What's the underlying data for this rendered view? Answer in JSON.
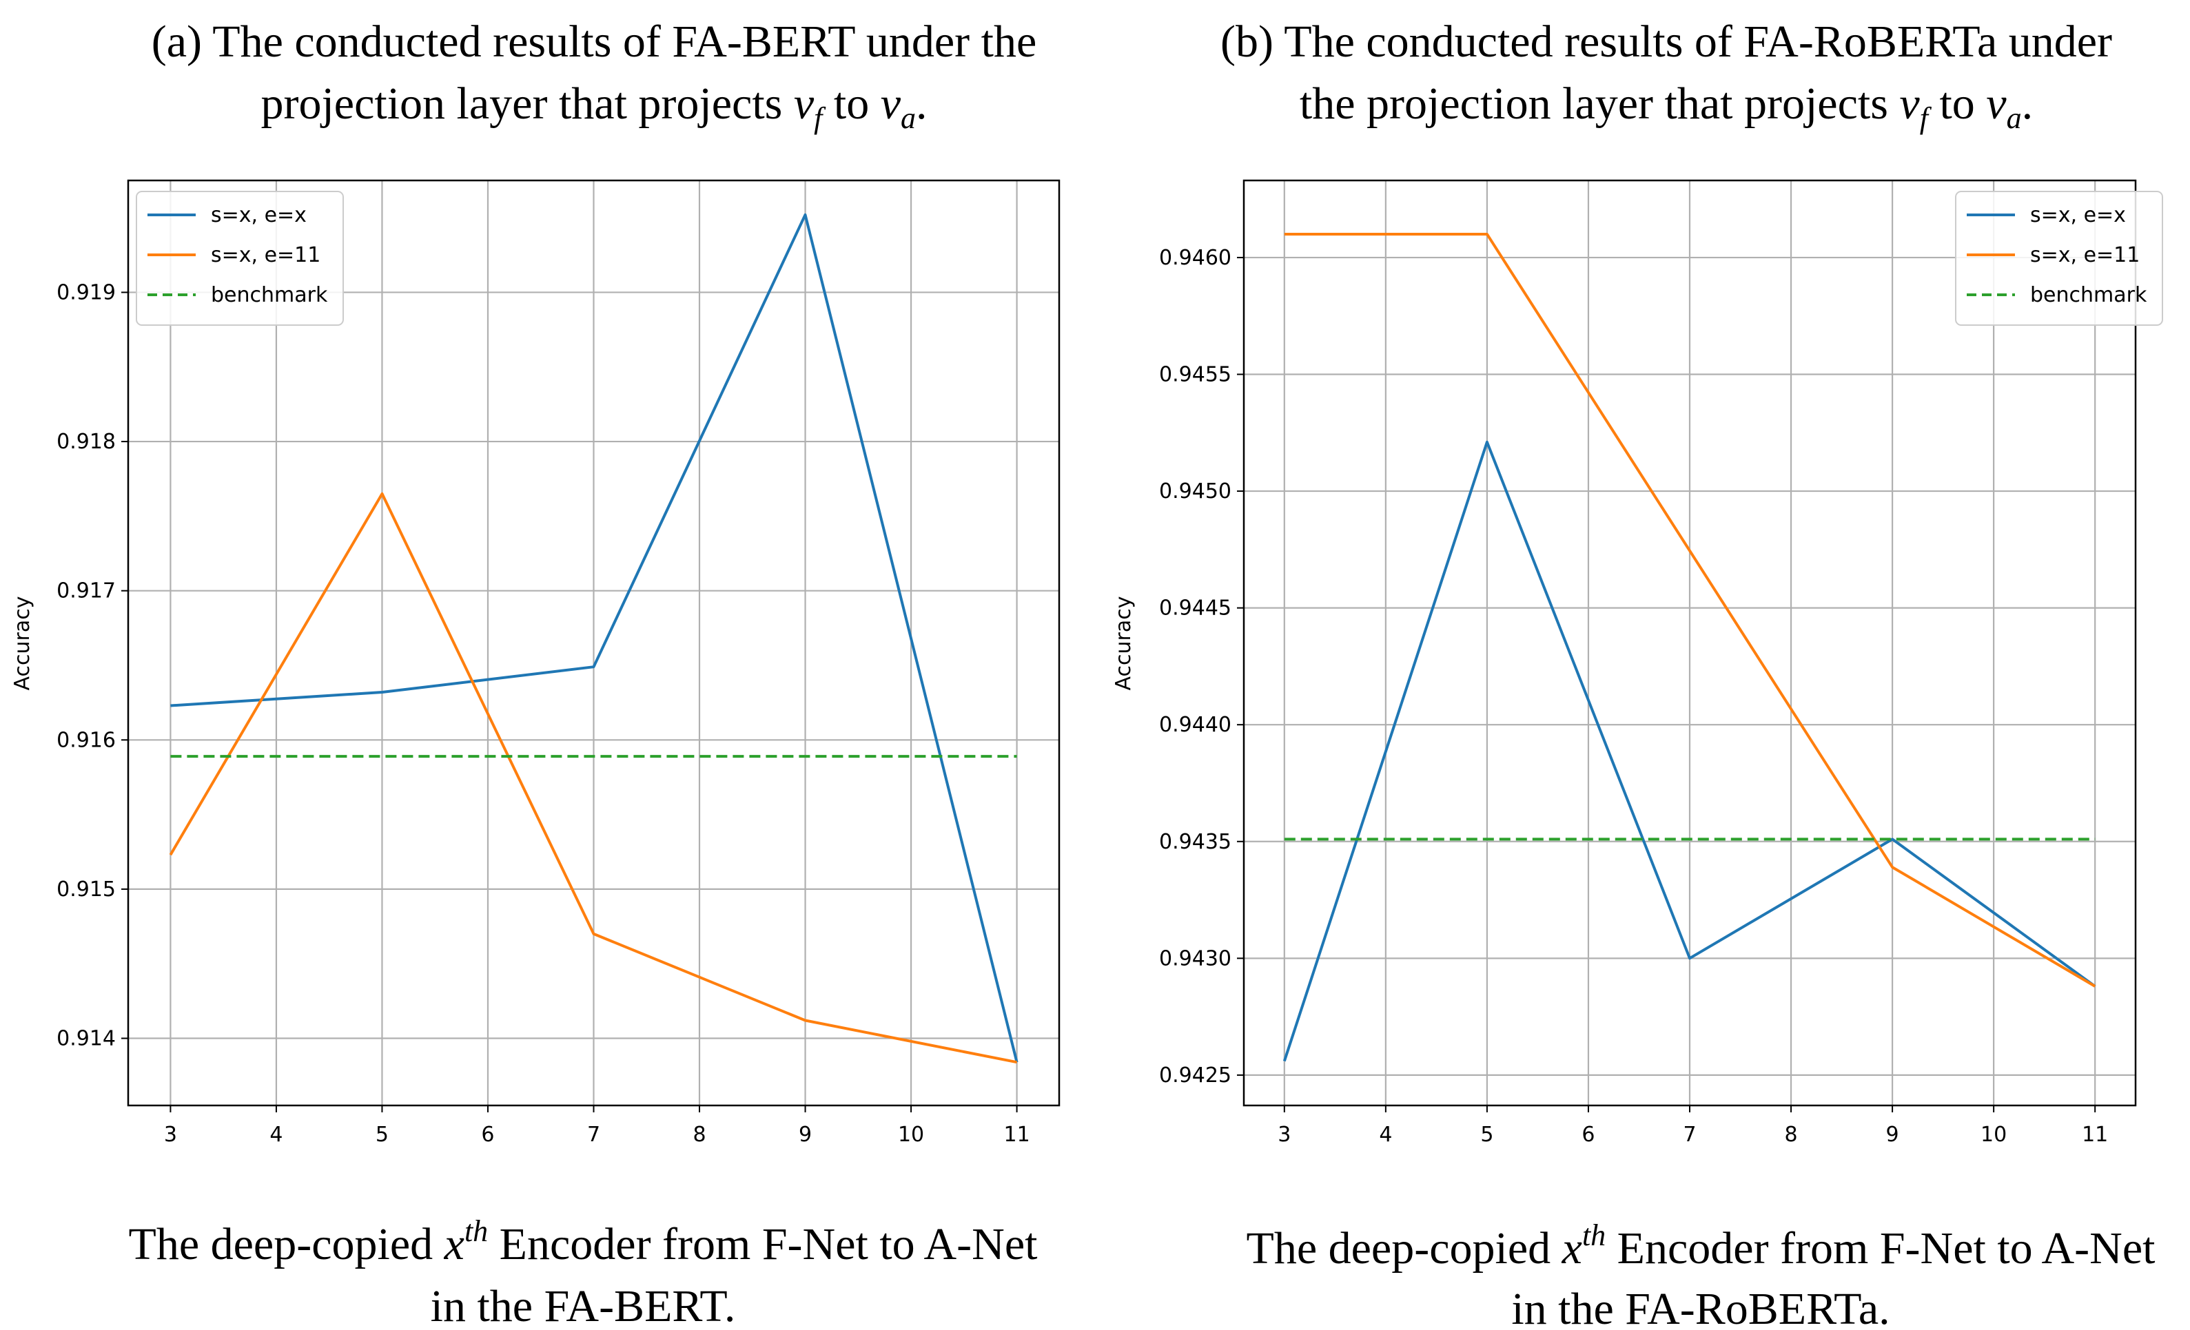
{
  "panels": [
    {
      "title_prefix": "(a) The conducted results of FA-BERT under the",
      "title_line2": "projection layer that projects",
      "title_vf": "v",
      "title_vf_sub": "f",
      "title_to": "to",
      "title_va": "v",
      "title_va_sub": "a",
      "title_end": ".",
      "caption_line1_start": "The deep-copied",
      "caption_x": "x",
      "caption_sup": "th",
      "caption_line1_end": "Encoder from F-Net to A-Net",
      "caption_line2": "in the FA-BERT."
    },
    {
      "title_prefix": "(b) The conducted results of FA-RoBERTa under",
      "title_line2": "the projection layer that projects",
      "title_vf": "v",
      "title_vf_sub": "f",
      "title_to": "to",
      "title_va": "v",
      "title_va_sub": "a",
      "title_end": ".",
      "caption_line1_start": "The deep-copied",
      "caption_x": "x",
      "caption_sup": "th",
      "caption_line1_end": "Encoder from F-Net to A-Net",
      "caption_line2": "in the FA-RoBERTa."
    }
  ],
  "chart_data": [
    {
      "type": "line",
      "title": "(a) The conducted results of FA-BERT under the projection layer that projects v_f to v_a.",
      "xlabel": "The deep-copied x^th Encoder from F-Net to A-Net in the FA-BERT.",
      "ylabel": "Accuracy",
      "x": [
        3,
        4,
        5,
        6,
        7,
        8,
        9,
        10,
        11
      ],
      "xlim": [
        2.6,
        11.4
      ],
      "ylim": [
        0.91355,
        0.91975
      ],
      "xticks": [
        "3",
        "4",
        "5",
        "6",
        "7",
        "8",
        "9",
        "10",
        "11"
      ],
      "yticks": [
        0.914,
        0.915,
        0.916,
        0.917,
        0.918,
        0.919
      ],
      "ytick_labels": [
        "0.914",
        "0.915",
        "0.916",
        "0.917",
        "0.918",
        "0.919"
      ],
      "grid": true,
      "legend_position": "upper-left",
      "series": [
        {
          "name": "s=x, e=x",
          "color": "#1f77b4",
          "style": "solid",
          "points": [
            [
              3,
              0.91623
            ],
            [
              5,
              0.91632
            ],
            [
              7,
              0.91649
            ],
            [
              9,
              0.91952
            ],
            [
              11,
              0.91384
            ]
          ]
        },
        {
          "name": "s=x, e=11",
          "color": "#ff7f0e",
          "style": "solid",
          "points": [
            [
              3,
              0.91523
            ],
            [
              5,
              0.91765
            ],
            [
              7,
              0.9147
            ],
            [
              9,
              0.91412
            ],
            [
              11,
              0.91384
            ]
          ]
        },
        {
          "name": "benchmark",
          "color": "#2ca02c",
          "style": "dashed",
          "points": [
            [
              3,
              0.91589
            ],
            [
              11,
              0.91589
            ]
          ]
        }
      ]
    },
    {
      "type": "line",
      "title": "(b) The conducted results of FA-RoBERTa under the projection layer that projects v_f to v_a.",
      "xlabel": "The deep-copied x^th Encoder from F-Net to A-Net in the FA-RoBERTa.",
      "ylabel": "Accuracy",
      "x": [
        3,
        4,
        5,
        6,
        7,
        8,
        9,
        10,
        11
      ],
      "xlim": [
        2.6,
        11.4
      ],
      "ylim": [
        0.94237,
        0.94633
      ],
      "xticks": [
        "3",
        "4",
        "5",
        "6",
        "7",
        "8",
        "9",
        "10",
        "11"
      ],
      "yticks": [
        0.9425,
        0.943,
        0.9435,
        0.944,
        0.9445,
        0.945,
        0.9455,
        0.946
      ],
      "ytick_labels": [
        "0.9425",
        "0.9430",
        "0.9435",
        "0.9440",
        "0.9445",
        "0.9450",
        "0.9455",
        "0.9460"
      ],
      "grid": true,
      "legend_position": "upper-right",
      "series": [
        {
          "name": "s=x, e=x",
          "color": "#1f77b4",
          "style": "solid",
          "points": [
            [
              3,
              0.94256
            ],
            [
              5,
              0.94521
            ],
            [
              7,
              0.943
            ],
            [
              9,
              0.94351
            ],
            [
              11,
              0.94288
            ]
          ]
        },
        {
          "name": "s=x, e=11",
          "color": "#ff7f0e",
          "style": "solid",
          "points": [
            [
              3,
              0.9461
            ],
            [
              5,
              0.9461
            ],
            [
              9,
              0.94339
            ],
            [
              11,
              0.94288
            ]
          ]
        },
        {
          "name": "benchmark",
          "color": "#2ca02c",
          "style": "dashed",
          "points": [
            [
              3,
              0.94351
            ],
            [
              11,
              0.94351
            ]
          ]
        }
      ]
    }
  ]
}
